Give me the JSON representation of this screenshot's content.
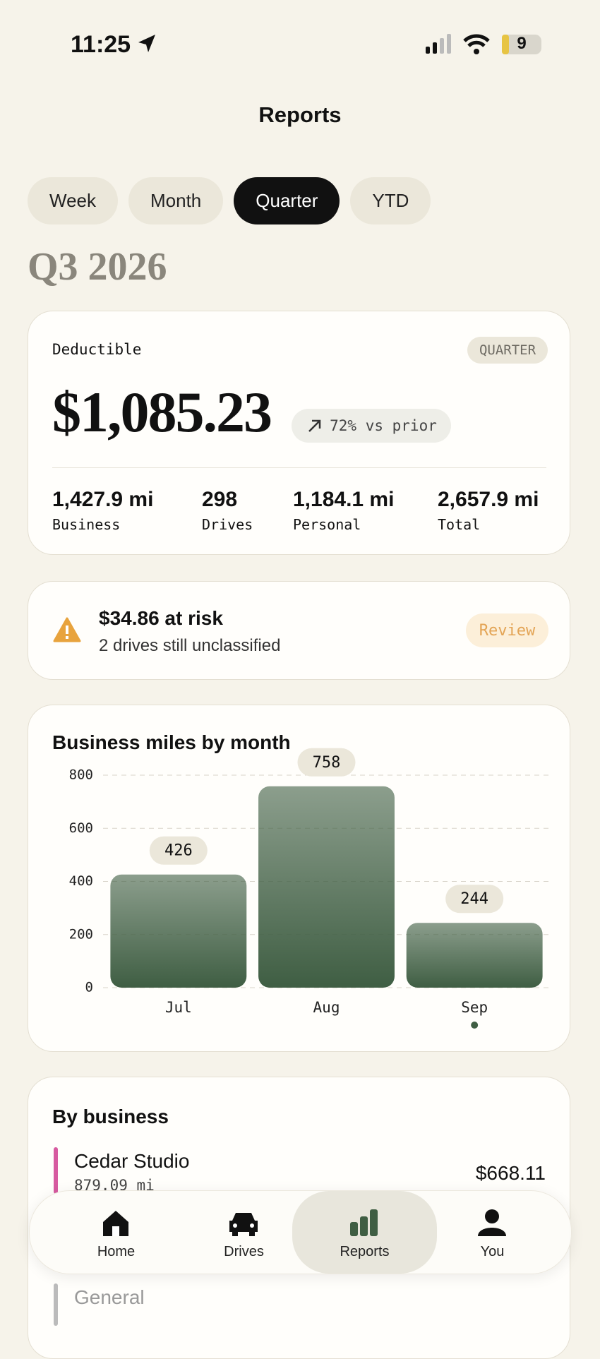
{
  "status": {
    "time": "11:25",
    "battery": "9"
  },
  "header": {
    "title": "Reports"
  },
  "tabs": [
    "Week",
    "Month",
    "Quarter",
    "YTD"
  ],
  "active_tab": 2,
  "period": "Q3 2026",
  "summary": {
    "label": "Deductible",
    "badge": "QUARTER",
    "amount": "$1,085.23",
    "change": "72% vs prior",
    "stats": [
      {
        "value": "1,427.9 mi",
        "label": "Business"
      },
      {
        "value": "298",
        "label": "Drives"
      },
      {
        "value": "1,184.1 mi",
        "label": "Personal"
      },
      {
        "value": "2,657.9 mi",
        "label": "Total"
      }
    ]
  },
  "alert": {
    "title": "$34.86 at risk",
    "subtitle": "2 drives still unclassified",
    "action": "Review"
  },
  "chart_data": {
    "type": "bar",
    "title": "Business miles by month",
    "categories": [
      "Jul",
      "Aug",
      "Sep"
    ],
    "values": [
      426,
      758,
      244
    ],
    "ylim": [
      0,
      800
    ],
    "yticks": [
      0,
      200,
      400,
      600,
      800
    ],
    "grid": true,
    "color": "#3f5e43"
  },
  "by_business": {
    "title": "By business",
    "items": [
      {
        "name": "Cedar Studio",
        "miles": "879.09 mi",
        "amount": "$668.11"
      },
      {
        "name": "General"
      }
    ]
  },
  "nav": [
    "Home",
    "Drives",
    "Reports",
    "You"
  ],
  "active_nav": 2
}
